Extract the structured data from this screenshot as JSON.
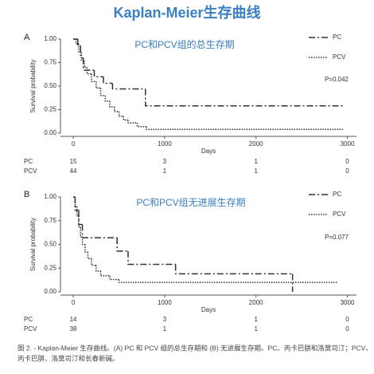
{
  "title": "Kaplan-Meier生存曲线",
  "caption": [
    "图 2. - Kaplan-Meier 生存曲线。(A) PC 和 PCV 组的总生存期和 (B) 无进展生存期。PC、丙卡巴肼和洛莫司汀；PCV、",
    "丙卡巴肼、洛莫司汀和长春新碱。"
  ],
  "chart_data": [
    {
      "type": "step",
      "panel": "A",
      "title": "PC和PCV组的总生存期",
      "xlabel": "Days",
      "ylabel": "Survival probability",
      "annotation": "P=0.042",
      "xlim": [
        -140,
        3100
      ],
      "ylim": [
        0,
        1
      ],
      "xticks": [
        0,
        1000,
        2000,
        3000
      ],
      "yticks": [
        {
          "value": 0,
          "label": "0.00"
        },
        {
          "value": 0.25,
          "label": "0.25"
        },
        {
          "value": 0.5,
          "label": "0.50"
        },
        {
          "value": 0.75,
          "label": "0.75"
        },
        {
          "value": 1,
          "label": "1.00"
        }
      ],
      "legend": "upper right",
      "series": [
        {
          "name": "PC",
          "color": "#333333",
          "dash": "dashdot",
          "x": [
            0,
            50,
            80,
            110,
            230,
            330,
            430,
            790,
            2950
          ],
          "values": [
            1,
            0.93,
            0.8,
            0.67,
            0.6,
            0.53,
            0.47,
            0.29,
            0.29
          ],
          "at_risk": [
            15,
            3,
            1,
            0
          ]
        },
        {
          "name": "PCV",
          "color": "#333333",
          "dash": "dotted",
          "x": [
            0,
            30,
            60,
            90,
            120,
            150,
            200,
            250,
            300,
            350,
            400,
            450,
            500,
            550,
            600,
            700,
            800,
            2950
          ],
          "values": [
            1,
            0.95,
            0.86,
            0.77,
            0.7,
            0.63,
            0.55,
            0.48,
            0.4,
            0.34,
            0.28,
            0.23,
            0.18,
            0.14,
            0.11,
            0.07,
            0.04,
            0.04
          ],
          "at_risk": [
            44,
            1,
            1,
            0
          ]
        }
      ]
    },
    {
      "type": "step",
      "panel": "B",
      "title": "PC和PCV组无进展生存期",
      "xlabel": "Days",
      "ylabel": "Survival probability",
      "annotation": "P=0.077",
      "xlim": [
        -140,
        3100
      ],
      "ylim": [
        0,
        1
      ],
      "xticks": [
        0,
        1000,
        2000,
        3000
      ],
      "yticks": [
        {
          "value": 0,
          "label": "0.00"
        },
        {
          "value": 0.25,
          "label": "0.25"
        },
        {
          "value": 0.5,
          "label": "0.50"
        },
        {
          "value": 0.75,
          "label": "0.75"
        },
        {
          "value": 1,
          "label": "1.00"
        }
      ],
      "legend": "upper right",
      "series": [
        {
          "name": "PC",
          "color": "#333333",
          "dash": "dashdot",
          "x": [
            0,
            20,
            60,
            100,
            480,
            600,
            1120,
            2400
          ],
          "values": [
            1,
            0.86,
            0.71,
            0.57,
            0.43,
            0.29,
            0.19,
            0
          ],
          "at_risk": [
            14,
            3,
            1,
            0
          ]
        },
        {
          "name": "PCV",
          "color": "#333333",
          "dash": "dotted",
          "x": [
            0,
            20,
            40,
            60,
            80,
            100,
            130,
            160,
            200,
            250,
            300,
            400,
            500,
            2900
          ],
          "values": [
            1,
            0.9,
            0.8,
            0.68,
            0.58,
            0.5,
            0.42,
            0.35,
            0.28,
            0.22,
            0.17,
            0.13,
            0.1,
            0.1
          ],
          "at_risk": [
            38,
            1,
            1,
            0
          ]
        }
      ]
    }
  ]
}
